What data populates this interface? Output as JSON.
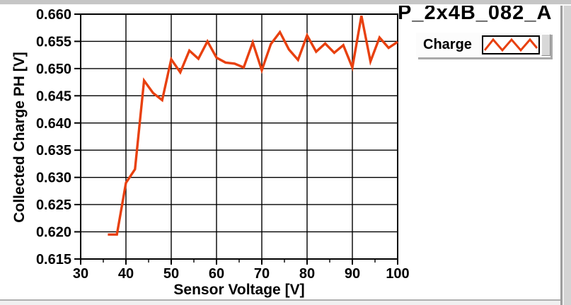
{
  "window": {
    "title": "P_2x4B_082_A"
  },
  "legend": {
    "label": "Charge"
  },
  "chart_data": {
    "type": "line",
    "title": "P_2x4B_082_A",
    "xlabel": "Sensor Voltage [V]",
    "ylabel": "Collected Charge PH [V]",
    "xlim": [
      30,
      100
    ],
    "ylim": [
      0.615,
      0.66
    ],
    "xticks": [
      30,
      40,
      50,
      60,
      70,
      80,
      90,
      100
    ],
    "xticks_minor": [
      35,
      45,
      55,
      65,
      75,
      85,
      95
    ],
    "yticks": [
      "0.660",
      "0.655",
      "0.650",
      "0.645",
      "0.640",
      "0.635",
      "0.630",
      "0.625",
      "0.620",
      "0.615"
    ],
    "grid": true,
    "legend_position": "top-right",
    "line_color": "#E8400F",
    "series": [
      {
        "name": "Charge",
        "x": [
          36,
          38,
          40,
          42,
          44,
          46,
          48,
          50,
          52,
          54,
          56,
          58,
          60,
          62,
          64,
          66,
          68,
          70,
          72,
          74,
          76,
          78,
          80,
          82,
          84,
          86,
          88,
          90,
          92,
          94,
          96,
          98,
          100
        ],
        "y": [
          0.6195,
          0.6195,
          0.629,
          0.6315,
          0.6478,
          0.6455,
          0.6442,
          0.6517,
          0.6493,
          0.6533,
          0.6518,
          0.655,
          0.652,
          0.6511,
          0.6509,
          0.6502,
          0.6548,
          0.6497,
          0.6545,
          0.6567,
          0.6535,
          0.6516,
          0.6561,
          0.6531,
          0.6546,
          0.6529,
          0.6543,
          0.6502,
          0.6597,
          0.6513,
          0.6557,
          0.6538,
          0.6549
        ]
      }
    ]
  }
}
